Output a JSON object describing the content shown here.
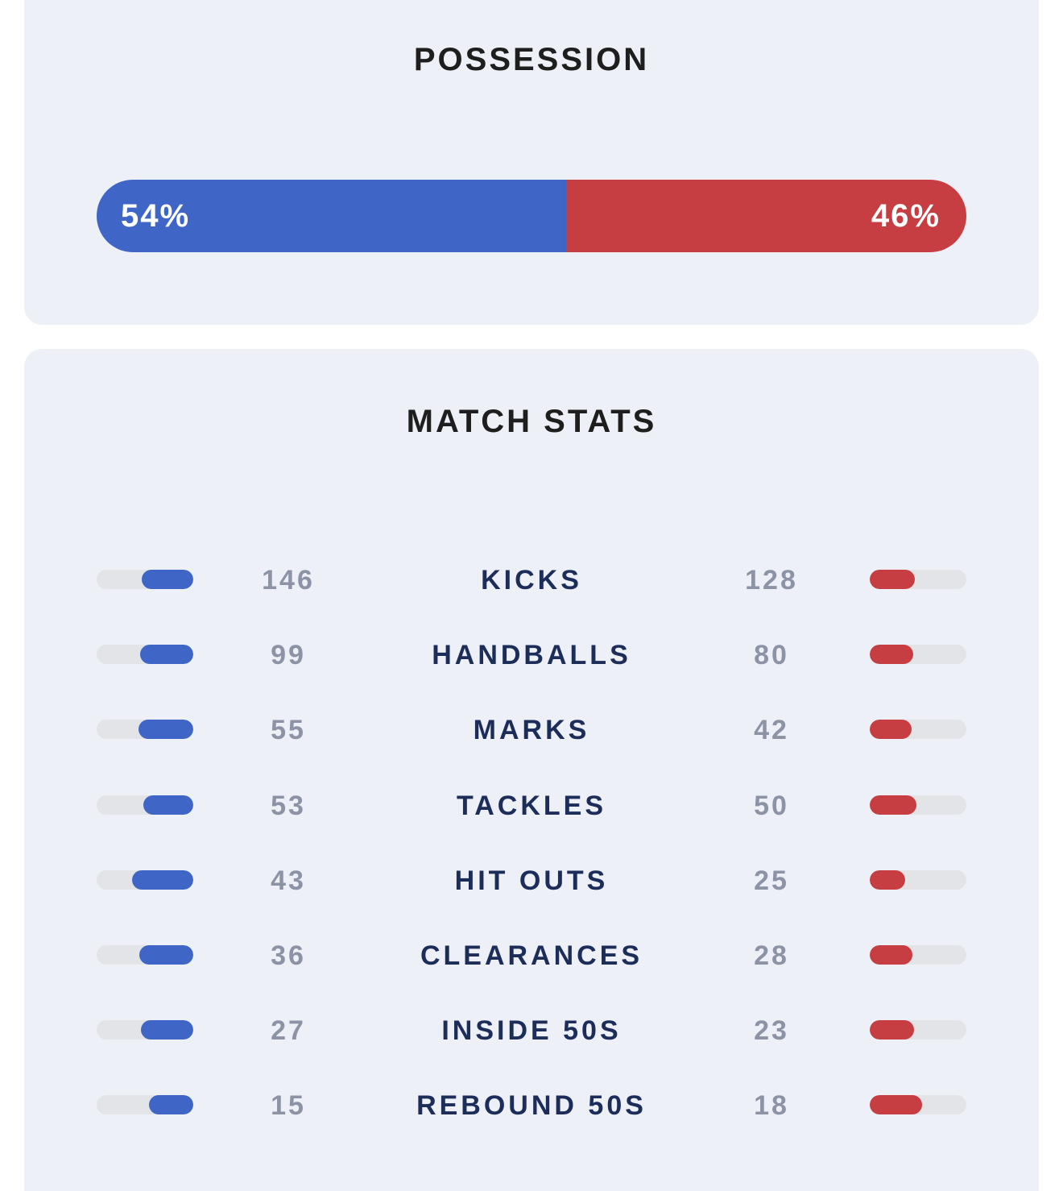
{
  "colors": {
    "home": "#3f66c6",
    "away": "#c73e42",
    "track": "#e2e4e8",
    "card": "#edf0f7"
  },
  "possession": {
    "title": "POSSESSION",
    "home": 54,
    "away": 46,
    "home_label": "54%",
    "away_label": "46%"
  },
  "match_stats": {
    "title": "MATCH STATS",
    "rows": [
      {
        "label": "KICKS",
        "home": 146,
        "away": 128
      },
      {
        "label": "HANDBALLS",
        "home": 99,
        "away": 80
      },
      {
        "label": "MARKS",
        "home": 55,
        "away": 42
      },
      {
        "label": "TACKLES",
        "home": 53,
        "away": 50
      },
      {
        "label": "HIT OUTS",
        "home": 43,
        "away": 25
      },
      {
        "label": "CLEARANCES",
        "home": 36,
        "away": 28
      },
      {
        "label": "INSIDE 50S",
        "home": 27,
        "away": 23
      },
      {
        "label": "REBOUND 50S",
        "home": 15,
        "away": 18
      }
    ]
  }
}
